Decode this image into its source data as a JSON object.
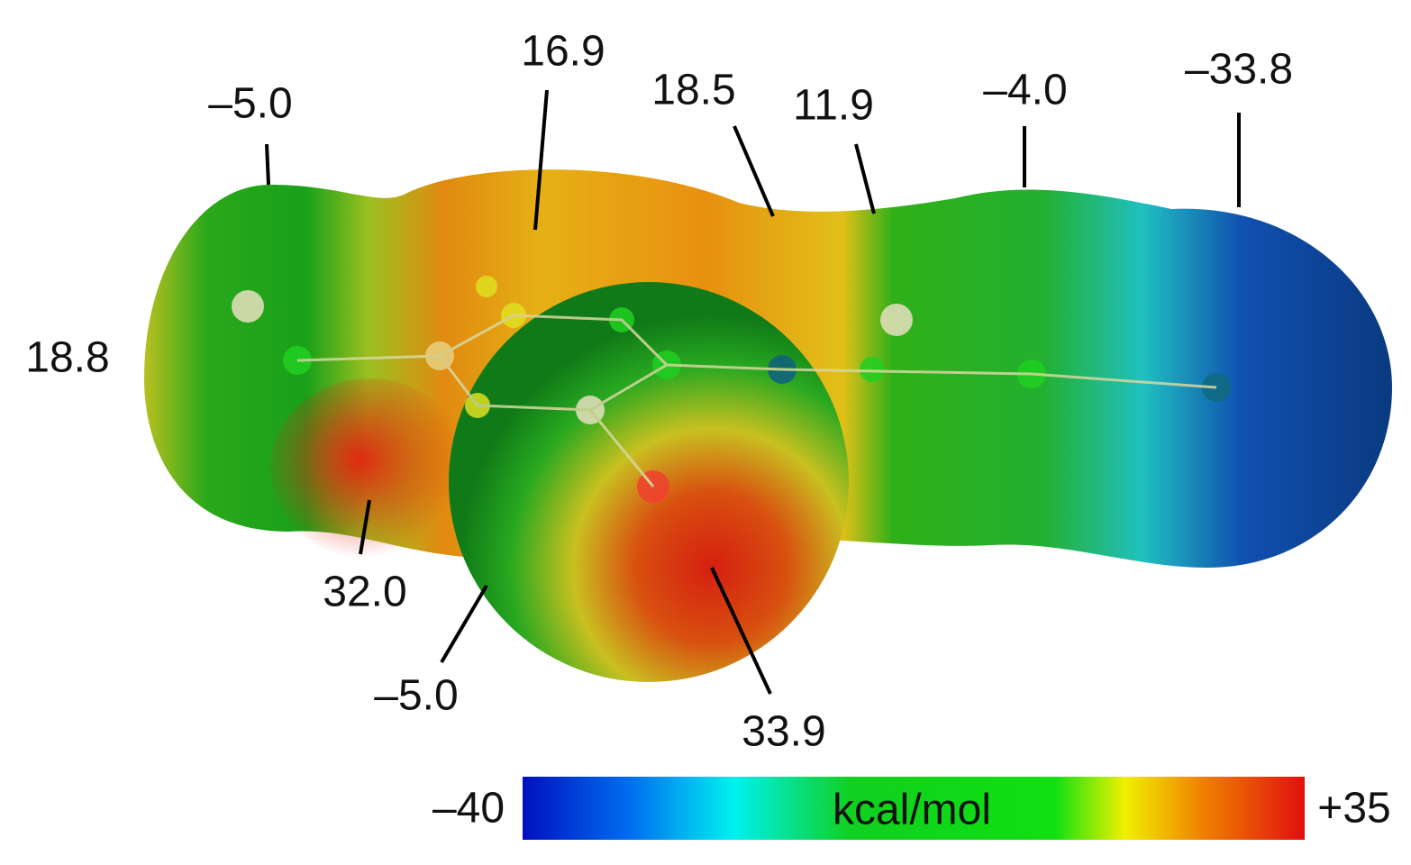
{
  "annotations": [
    "–5.0",
    "16.9",
    "18.5",
    "11.9",
    "–4.0",
    "–33.8",
    "18.8",
    "32.0",
    "–5.0",
    "33.9"
  ],
  "colorbar": {
    "min_label": "–40",
    "max_label": "+35",
    "unit": "kcal/mol"
  }
}
